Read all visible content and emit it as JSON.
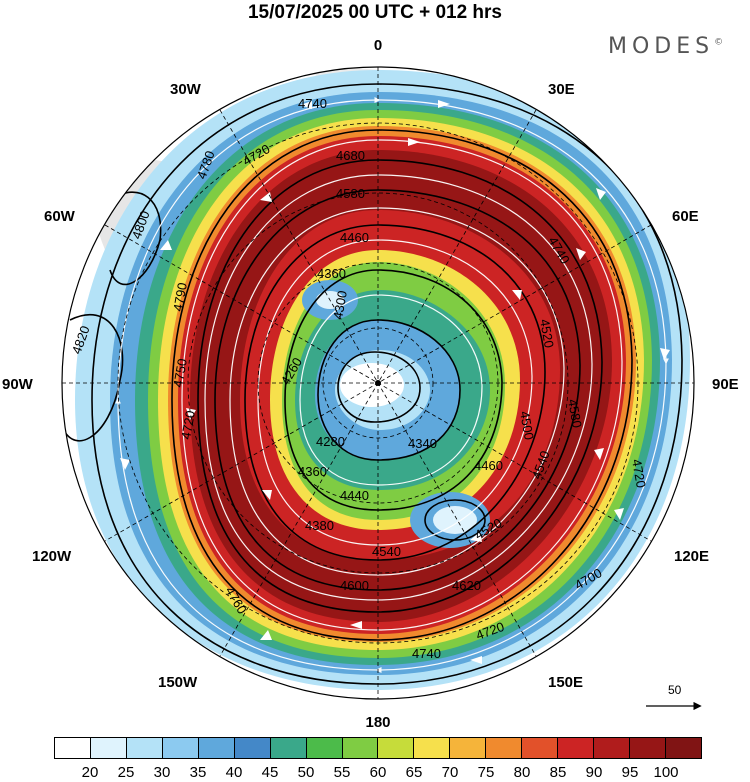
{
  "header": {
    "title": "15/07/2025  00 UTC  + 012 hrs",
    "brand": "MODES",
    "brand_mark": "©"
  },
  "map_labels": {
    "top": "0",
    "bottom": "180",
    "left": "90W",
    "right": "90E",
    "upper_left": "30W",
    "upper_right": "30E",
    "left_upper": "60W",
    "right_upper": "60E",
    "left_lower": "120W",
    "right_lower": "120E",
    "lower_left": "150W",
    "lower_right": "150E"
  },
  "contour_labels": [
    "4740",
    "4780",
    "4720",
    "4680",
    "4580",
    "4460",
    "4360",
    "4300",
    "4260",
    "4280",
    "4340",
    "4500",
    "4540",
    "4440",
    "4460",
    "4360",
    "4380",
    "4520",
    "4540",
    "4600",
    "4620",
    "4700",
    "4720",
    "4740",
    "4760",
    "4800",
    "4820",
    "4790",
    "4750",
    "4720",
    "4720",
    "4740",
    "4520",
    "4580"
  ],
  "reference_vector": {
    "value": "50"
  },
  "colorbar": {
    "ticks": [
      "20",
      "25",
      "30",
      "35",
      "40",
      "45",
      "50",
      "55",
      "60",
      "65",
      "70",
      "75",
      "80",
      "85",
      "90",
      "95",
      "100"
    ],
    "colors": [
      "#ffffff",
      "#dff3fd",
      "#b4e2f7",
      "#8ccaf0",
      "#5fa8dc",
      "#4488c8",
      "#3aa88a",
      "#4cbb4a",
      "#7fcc43",
      "#c6dc3a",
      "#f6e04c",
      "#f5b43a",
      "#f08a2e",
      "#e2512a",
      "#cc2424",
      "#b01c1c",
      "#961616",
      "#801414"
    ]
  },
  "colors": {
    "ocean_land": "#ffffff",
    "land_gray": "#e6e6e6",
    "contour": "#000000",
    "streamline": "#ffffff"
  }
}
